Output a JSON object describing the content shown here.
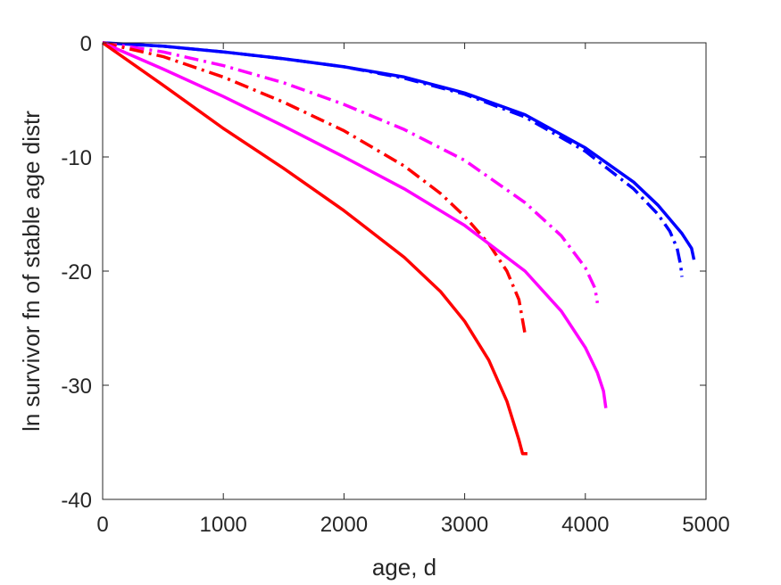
{
  "chart_data": {
    "type": "line",
    "title": "",
    "xlabel": "age, d",
    "ylabel": "ln survivor fn of stable age distr",
    "xlim": [
      0,
      5000
    ],
    "ylim": [
      -40,
      0
    ],
    "xticks": [
      0,
      1000,
      2000,
      3000,
      4000,
      5000
    ],
    "yticks": [
      0,
      -10,
      -20,
      -30,
      -40
    ],
    "xtick_labels": [
      "0",
      "1000",
      "2000",
      "3000",
      "4000",
      "5000"
    ],
    "ytick_labels": [
      "0",
      "-10",
      "-20",
      "-30",
      "-40"
    ],
    "grid": false,
    "legend": "none",
    "series": [
      {
        "color": "#0000ff",
        "style": "solid",
        "x": [
          0,
          500,
          1000,
          1500,
          2000,
          2500,
          3000,
          3500,
          4000,
          4400,
          4600,
          4800,
          4880,
          4900
        ],
        "y": [
          0,
          -0.3,
          -0.8,
          -1.4,
          -2.1,
          -3.0,
          -4.4,
          -6.3,
          -9.2,
          -12.2,
          -14.2,
          -16.7,
          -18.0,
          -19.0
        ]
      },
      {
        "color": "#0000ff",
        "style": "dashdot",
        "x": [
          0,
          500,
          1000,
          1500,
          2000,
          2500,
          3000,
          3500,
          4000,
          4400,
          4600,
          4700,
          4760,
          4790,
          4800
        ],
        "y": [
          0,
          -0.3,
          -0.8,
          -1.4,
          -2.1,
          -3.1,
          -4.5,
          -6.5,
          -9.5,
          -12.8,
          -15.0,
          -16.5,
          -18.0,
          -19.5,
          -20.5
        ]
      },
      {
        "color": "#ff00ff",
        "style": "dashdot",
        "x": [
          0,
          500,
          1000,
          1500,
          2000,
          2500,
          3000,
          3500,
          3800,
          4000,
          4080,
          4100
        ],
        "y": [
          0,
          -0.8,
          -2.0,
          -3.5,
          -5.4,
          -7.6,
          -10.3,
          -14.0,
          -16.9,
          -19.7,
          -21.5,
          -22.8
        ]
      },
      {
        "color": "#ff0000",
        "style": "dashdot",
        "x": [
          0,
          500,
          1000,
          1500,
          2000,
          2500,
          2800,
          3000,
          3200,
          3350,
          3450,
          3500
        ],
        "y": [
          0,
          -1.2,
          -3.0,
          -5.2,
          -7.7,
          -10.8,
          -13.2,
          -15.2,
          -17.6,
          -20.0,
          -22.5,
          -25.5
        ]
      },
      {
        "color": "#ff00ff",
        "style": "solid",
        "x": [
          0,
          500,
          1000,
          1500,
          2000,
          2500,
          3000,
          3500,
          3800,
          4000,
          4100,
          4150,
          4170
        ],
        "y": [
          0,
          -2.3,
          -4.7,
          -7.3,
          -10.0,
          -12.8,
          -16.0,
          -20.0,
          -23.5,
          -26.7,
          -28.9,
          -30.5,
          -32.0
        ]
      },
      {
        "color": "#ff0000",
        "style": "solid",
        "x": [
          0,
          500,
          1000,
          1500,
          2000,
          2500,
          2800,
          3000,
          3200,
          3350,
          3450,
          3480,
          3520
        ],
        "y": [
          0,
          -3.7,
          -7.5,
          -11.0,
          -14.7,
          -18.8,
          -21.8,
          -24.4,
          -27.8,
          -31.4,
          -34.8,
          -36.0,
          -36.0
        ]
      }
    ]
  }
}
